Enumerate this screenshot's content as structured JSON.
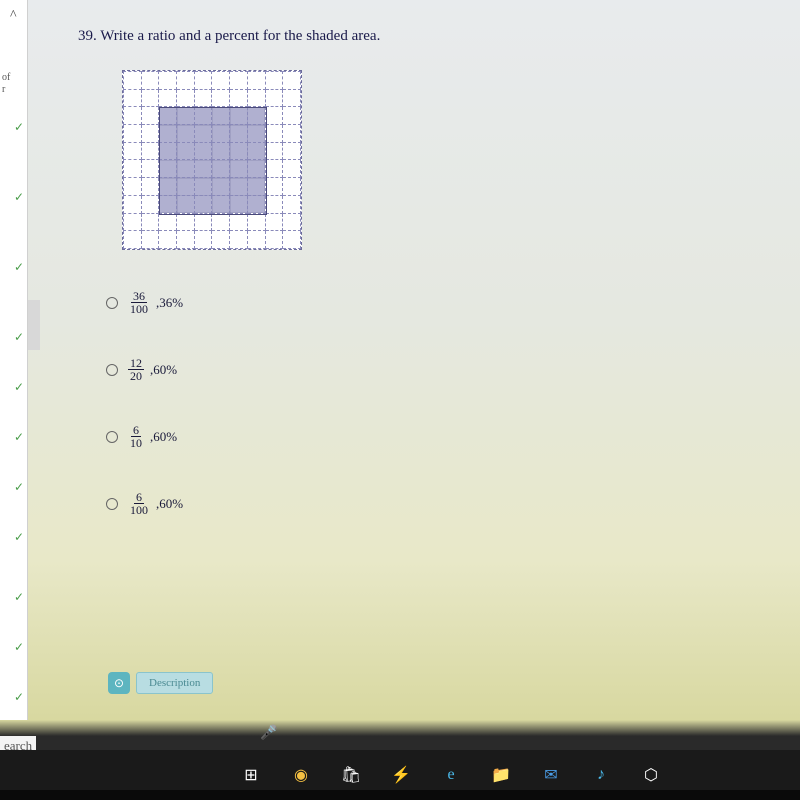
{
  "sidebar": {
    "label_of": "of",
    "label_r": "r",
    "checks": [
      120,
      190,
      260,
      330,
      380,
      430,
      480,
      530,
      590,
      640,
      690
    ]
  },
  "question": {
    "number": "39.",
    "text": "Write a ratio and a percent for the shaded area."
  },
  "grid": {
    "size": 10,
    "shaded_inner_start": 2,
    "shaded_inner_end": 7,
    "border_color": "#6a6a9a"
  },
  "options": [
    {
      "numerator": "36",
      "denominator": "100",
      "percent": "36%"
    },
    {
      "numerator": "12",
      "denominator": "20",
      "percent": "60%"
    },
    {
      "numerator": "6",
      "denominator": "10",
      "percent": "60%"
    },
    {
      "numerator": "6",
      "denominator": "100",
      "percent": "60%"
    }
  ],
  "desc_button": {
    "icon": "⊙",
    "label": "Description"
  },
  "search_label": "earch",
  "taskbar": {
    "icons": [
      {
        "name": "task-view",
        "glyph": "⊞",
        "color": "#ffffff"
      },
      {
        "name": "chrome",
        "glyph": "◉",
        "color": "#f4c042"
      },
      {
        "name": "store",
        "glyph": "🛍",
        "color": "#ffffff"
      },
      {
        "name": "flash",
        "glyph": "⚡",
        "color": "#4a9de8"
      },
      {
        "name": "edge",
        "glyph": "e",
        "color": "#4ab8e8"
      },
      {
        "name": "explorer",
        "glyph": "📁",
        "color": "#f4c060"
      },
      {
        "name": "mail",
        "glyph": "✉",
        "color": "#4a9de8"
      },
      {
        "name": "music",
        "glyph": "♪",
        "color": "#4ab8e8"
      },
      {
        "name": "dropbox",
        "glyph": "⬡",
        "color": "#ffffff"
      }
    ]
  },
  "colors": {
    "background_top": "#e8ebed",
    "background_mid": "#e8e8c8",
    "check_color": "#4a9d4a",
    "text_color": "#1a1a4a"
  }
}
